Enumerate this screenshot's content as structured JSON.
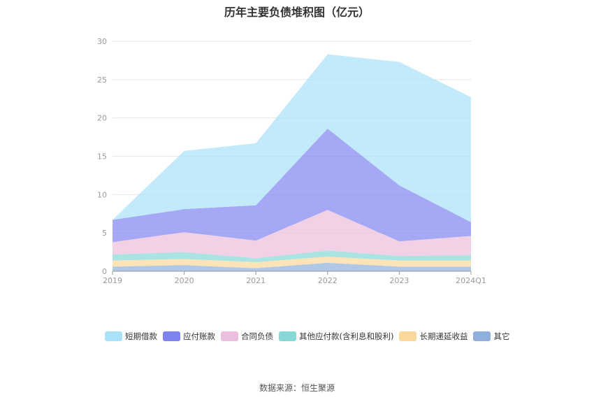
{
  "chart_data": {
    "type": "area",
    "stacked": true,
    "title": "历年主要负债堆积图（亿元）",
    "categories": [
      "2019",
      "2020",
      "2021",
      "2022",
      "2023",
      "2024Q1"
    ],
    "ylim": [
      0,
      30
    ],
    "yticks": [
      0,
      5,
      10,
      15,
      20,
      25,
      30
    ],
    "grid": true,
    "legend_position": "bottom",
    "series": [
      {
        "name": "其它",
        "color": "#8fb0dc",
        "values": [
          0.6,
          0.8,
          0.4,
          1.1,
          0.6,
          0.6
        ]
      },
      {
        "name": "长期递延收益",
        "color": "#fbd79a",
        "values": [
          0.8,
          0.8,
          0.8,
          0.8,
          0.8,
          0.8
        ]
      },
      {
        "name": "其他应付款(含利息和股利)",
        "color": "#86d8d6",
        "values": [
          0.8,
          0.9,
          0.5,
          0.8,
          0.6,
          0.7
        ]
      },
      {
        "name": "合同负债",
        "color": "#ecbedd",
        "values": [
          1.6,
          2.6,
          2.3,
          5.3,
          1.9,
          2.5
        ]
      },
      {
        "name": "应付账款",
        "color": "#7f83f0",
        "values": [
          2.9,
          3.0,
          4.6,
          10.6,
          7.3,
          1.8
        ]
      },
      {
        "name": "短期借款",
        "color": "#a8e1f8",
        "values": [
          0.0,
          7.6,
          8.1,
          9.7,
          16.1,
          16.3
        ]
      }
    ],
    "legend_order": [
      "短期借款",
      "应付账款",
      "合同负债",
      "其他应付款(含利息和股利)",
      "长期递延收益",
      "其它"
    ]
  },
  "source": "数据来源：恒生聚源"
}
